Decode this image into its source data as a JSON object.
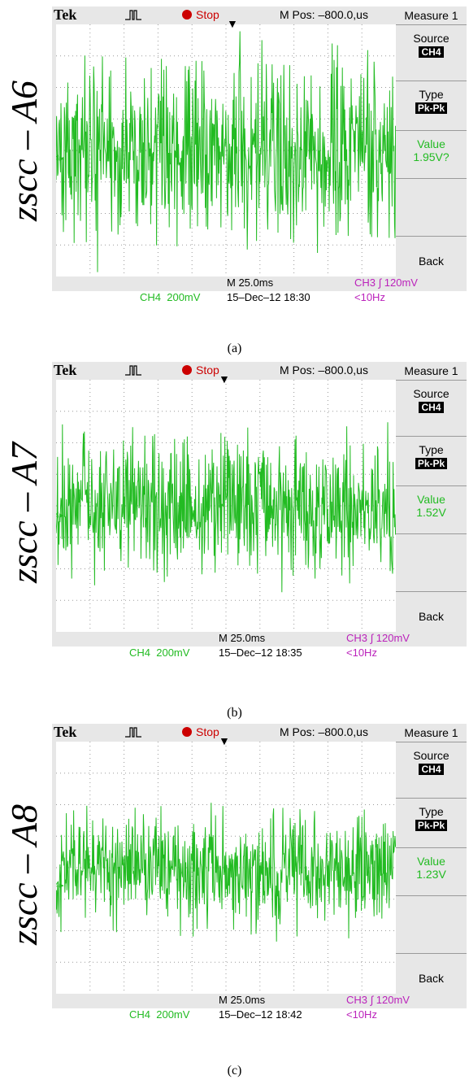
{
  "panels": [
    {
      "side_label": "zscc – A6",
      "tek": "Tek",
      "status": "Stop",
      "mpos": "M Pos: –800.0,us",
      "menu": {
        "title": "Measure 1",
        "source_label": "Source",
        "source_value": "CH4",
        "type_label": "Type",
        "type_value": "Pk-Pk",
        "value_label": "Value",
        "value": "1.95V?",
        "back": "Back"
      },
      "timebase": "M 25.0ms",
      "trigger": "CH3 ∫ 120mV",
      "ch4": "CH4  200mV",
      "date": "15–Dec–12 18:30",
      "freq": "<10Hz",
      "caption": "(a)",
      "noise_seed": 11,
      "amplitude": 1.0
    },
    {
      "side_label": "zscc – A7",
      "tek": "Tek",
      "status": "Stop",
      "mpos": "M Pos: –800.0,us",
      "menu": {
        "title": "Measure 1",
        "source_label": "Source",
        "source_value": "CH4",
        "type_label": "Type",
        "type_value": "Pk-Pk",
        "value_label": "Value",
        "value": "1.52V",
        "back": "Back"
      },
      "timebase": "M 25.0ms",
      "trigger": "CH3 ∫ 120mV",
      "ch4": "CH4  200mV",
      "date": "15–Dec–12 18:35",
      "freq": "<10Hz",
      "caption": "(b)",
      "noise_seed": 23,
      "amplitude": 0.8
    },
    {
      "side_label": "zscc – A8",
      "tek": "Tek",
      "status": "Stop",
      "mpos": "M Pos: –800.0,us",
      "menu": {
        "title": "Measure 1",
        "source_label": "Source",
        "source_value": "CH4",
        "type_label": "Type",
        "type_value": "Pk-Pk",
        "value_label": "Value",
        "value": "1.23V",
        "back": "Back"
      },
      "timebase": "M 25.0ms",
      "trigger": "CH3 ∫ 120mV",
      "ch4": "CH4  200mV",
      "date": "15–Dec–12 18:42",
      "freq": "<10Hz",
      "caption": "(c)",
      "noise_seed": 37,
      "amplitude": 0.62
    }
  ],
  "colors": {
    "trace": "#22bb22",
    "magenta": "#bb22bb",
    "grid": "#9a9a9a"
  }
}
